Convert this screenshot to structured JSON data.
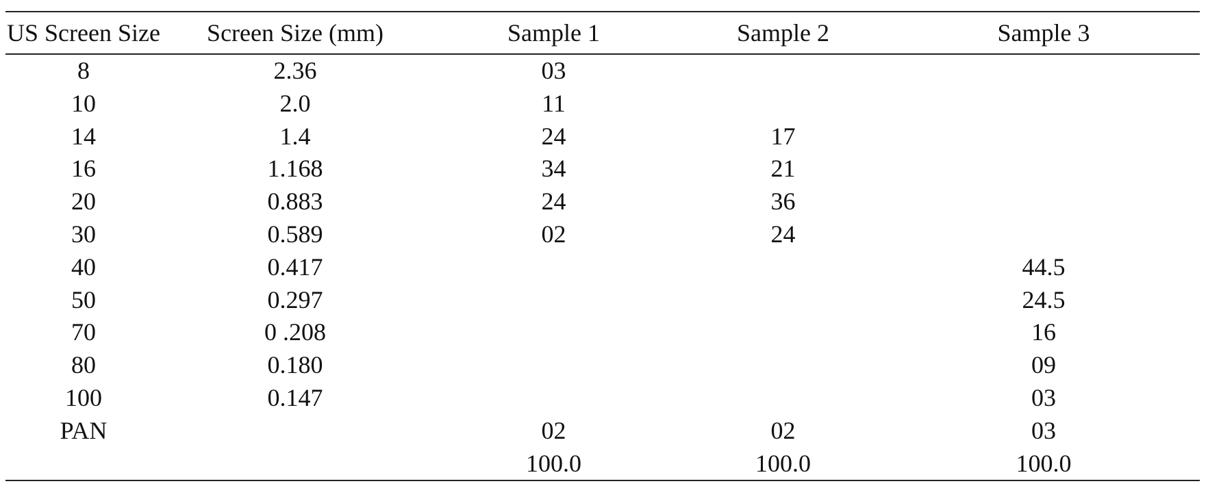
{
  "table": {
    "headers": [
      "US Screen Size",
      "Screen Size (mm)",
      "Sample 1",
      "Sample 2",
      "Sample 3"
    ],
    "rows": [
      [
        "8",
        "2.36",
        "03",
        "",
        ""
      ],
      [
        "10",
        "2.0",
        "11",
        "",
        ""
      ],
      [
        "14",
        "1.4",
        "24",
        "17",
        ""
      ],
      [
        "16",
        "1.168",
        "34",
        "21",
        ""
      ],
      [
        "20",
        "0.883",
        "24",
        "36",
        ""
      ],
      [
        "30",
        "0.589",
        "02",
        "24",
        ""
      ],
      [
        "40",
        "0.417",
        "",
        "",
        "44.5"
      ],
      [
        "50",
        "0.297",
        "",
        "",
        "24.5"
      ],
      [
        "70",
        "0 .208",
        "",
        "",
        "16"
      ],
      [
        "80",
        "0.180",
        "",
        "",
        "09"
      ],
      [
        "100",
        "0.147",
        "",
        "",
        "03"
      ],
      [
        "PAN",
        "",
        "02",
        "02",
        "03"
      ],
      [
        "",
        "",
        "100.0",
        "100.0",
        "100.0"
      ]
    ]
  }
}
